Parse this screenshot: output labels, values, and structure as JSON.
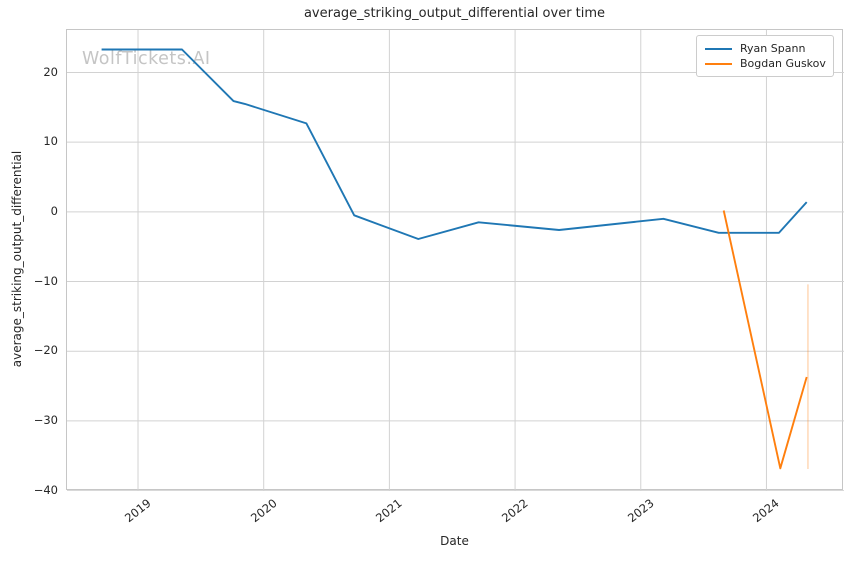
{
  "chart_data": {
    "type": "line",
    "title": "average_striking_output_differential over time",
    "xlabel": "Date",
    "ylabel": "average_striking_output_differential",
    "watermark": "WolfTickets.AI",
    "grid": true,
    "legend_position": "upper right",
    "axes": {
      "xlim": [
        2018.435,
        2024.617
      ],
      "ylim": [
        -40.06,
        26.1
      ],
      "xticks": [
        2019,
        2020,
        2021,
        2022,
        2023,
        2024
      ],
      "yticks": [
        20,
        10,
        0,
        -10,
        -20,
        -30,
        -40
      ]
    },
    "series": [
      {
        "name": "Ryan Spann",
        "color": "#1f77b4",
        "x": [
          2018.71,
          2019.35,
          2019.76,
          2019.85,
          2020.34,
          2020.72,
          2021.23,
          2021.71,
          2022.35,
          2023.18,
          2023.62,
          2024.1,
          2024.32
        ],
        "y": [
          23.3,
          23.3,
          15.9,
          15.5,
          12.7,
          -0.5,
          -3.9,
          -1.5,
          -2.6,
          -1.0,
          -3.0,
          -3.0,
          1.4
        ]
      },
      {
        "name": "Bogdan Guskov",
        "color": "#ff7f0e",
        "x": [
          2023.66,
          2024.11,
          2024.32
        ],
        "y": [
          0.2,
          -36.8,
          -23.7
        ]
      }
    ],
    "annotations": [
      {
        "type": "vertical-range",
        "x": 2024.33,
        "y_from": -10.4,
        "y_to": -36.9,
        "color": "#ff7f0e",
        "opacity": 0.28
      }
    ]
  },
  "colors": {
    "grid": "#d2d2d2",
    "spine": "#c6c6c6",
    "text": "#262626",
    "watermark": "#c5c5c5"
  }
}
